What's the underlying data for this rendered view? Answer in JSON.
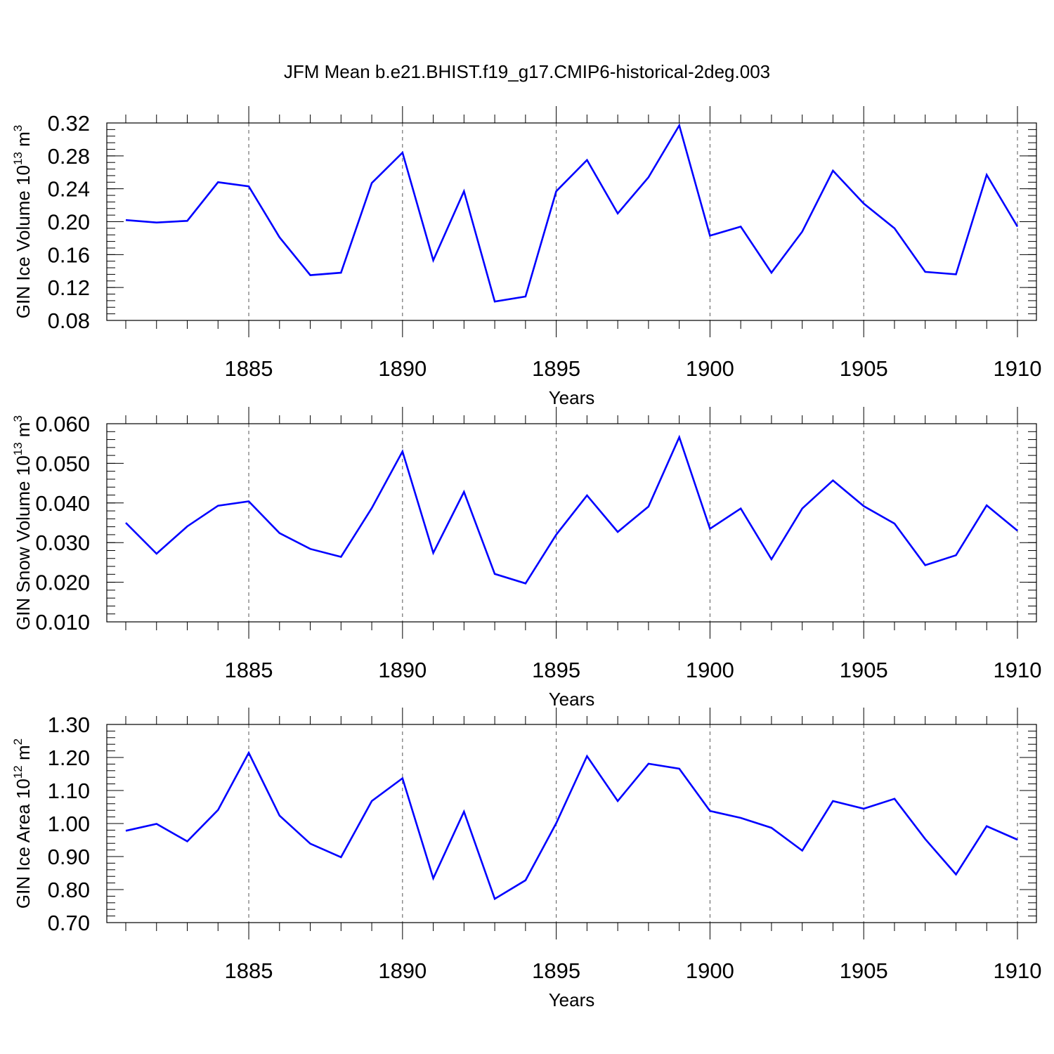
{
  "title": "JFM Mean b.e21.BHIST.f19_g17.CMIP6-historical-2deg.003",
  "line_color": "#0000ff",
  "chart_data": [
    {
      "type": "line",
      "xlabel": "Years",
      "ylabel": "GIN Ice Volume 10",
      "ylabel_sup": "13",
      "ylabel_unit": " m",
      "ylabel_unit_sup": "3",
      "xlim": [
        1881,
        1910
      ],
      "ylim": [
        0.08,
        0.32
      ],
      "x_major_ticks": [
        1885,
        1890,
        1895,
        1900,
        1905,
        1910
      ],
      "x_tick_labels": [
        "1885",
        "1890",
        "1895",
        "1900",
        "1905",
        "1910"
      ],
      "y_major_ticks": [
        0.08,
        0.12,
        0.16,
        0.2,
        0.24,
        0.28,
        0.32
      ],
      "y_tick_labels": [
        "0.08",
        "0.12",
        "0.16",
        "0.20",
        "0.24",
        "0.28",
        "0.32"
      ],
      "y_minor_step": 0.008,
      "grid": "x-major dashed",
      "x": [
        1881,
        1882,
        1883,
        1884,
        1885,
        1886,
        1887,
        1888,
        1889,
        1890,
        1891,
        1892,
        1893,
        1894,
        1895,
        1896,
        1897,
        1898,
        1899,
        1900,
        1901,
        1902,
        1903,
        1904,
        1905,
        1906,
        1907,
        1908,
        1909,
        1910
      ],
      "series": [
        {
          "values": [
            0.202,
            0.199,
            0.201,
            0.248,
            0.243,
            0.181,
            0.135,
            0.138,
            0.247,
            0.284,
            0.153,
            0.237,
            0.103,
            0.109,
            0.237,
            0.275,
            0.21,
            0.254,
            0.317,
            0.183,
            0.194,
            0.138,
            0.188,
            0.262,
            0.222,
            0.192,
            0.139,
            0.136,
            0.257,
            0.194
          ]
        }
      ]
    },
    {
      "type": "line",
      "xlabel": "Years",
      "ylabel": "GIN Snow Volume 10",
      "ylabel_sup": "13",
      "ylabel_unit": " m",
      "ylabel_unit_sup": "3",
      "xlim": [
        1881,
        1910
      ],
      "ylim": [
        0.01,
        0.06
      ],
      "x_major_ticks": [
        1885,
        1890,
        1895,
        1900,
        1905,
        1910
      ],
      "x_tick_labels": [
        "1885",
        "1890",
        "1895",
        "1900",
        "1905",
        "1910"
      ],
      "y_major_ticks": [
        0.01,
        0.02,
        0.03,
        0.04,
        0.05,
        0.06
      ],
      "y_tick_labels": [
        "0.010",
        "0.020",
        "0.030",
        "0.040",
        "0.050",
        "0.060"
      ],
      "y_minor_step": 0.002,
      "grid": "x-major dashed",
      "x": [
        1881,
        1882,
        1883,
        1884,
        1885,
        1886,
        1887,
        1888,
        1889,
        1890,
        1891,
        1892,
        1893,
        1894,
        1895,
        1896,
        1897,
        1898,
        1899,
        1900,
        1901,
        1902,
        1903,
        1904,
        1905,
        1906,
        1907,
        1908,
        1909,
        1910
      ],
      "series": [
        {
          "values": [
            0.035,
            0.0272,
            0.0341,
            0.0393,
            0.0404,
            0.0324,
            0.0284,
            0.0264,
            0.0387,
            0.053,
            0.0274,
            0.0428,
            0.0221,
            0.0197,
            0.032,
            0.0419,
            0.0327,
            0.0391,
            0.0566,
            0.0335,
            0.0386,
            0.0258,
            0.0386,
            0.0457,
            0.0392,
            0.0348,
            0.0243,
            0.0268,
            0.0394,
            0.033
          ]
        }
      ]
    },
    {
      "type": "line",
      "xlabel": "Years",
      "ylabel": "GIN Ice Area 10",
      "ylabel_sup": "12",
      "ylabel_unit": " m",
      "ylabel_unit_sup": "2",
      "xlim": [
        1881,
        1910
      ],
      "ylim": [
        0.7,
        1.3
      ],
      "x_major_ticks": [
        1885,
        1890,
        1895,
        1900,
        1905,
        1910
      ],
      "x_tick_labels": [
        "1885",
        "1890",
        "1895",
        "1900",
        "1905",
        "1910"
      ],
      "y_major_ticks": [
        0.7,
        0.8,
        0.9,
        1.0,
        1.1,
        1.2,
        1.3
      ],
      "y_tick_labels": [
        "0.70",
        "0.80",
        "0.90",
        "1.00",
        "1.10",
        "1.20",
        "1.30"
      ],
      "y_minor_step": 0.02,
      "grid": "x-major dashed",
      "x": [
        1881,
        1882,
        1883,
        1884,
        1885,
        1886,
        1887,
        1888,
        1889,
        1890,
        1891,
        1892,
        1893,
        1894,
        1895,
        1896,
        1897,
        1898,
        1899,
        1900,
        1901,
        1902,
        1903,
        1904,
        1905,
        1906,
        1907,
        1908,
        1909,
        1910
      ],
      "series": [
        {
          "values": [
            0.978,
            0.999,
            0.946,
            1.041,
            1.214,
            1.024,
            0.939,
            0.898,
            1.068,
            1.137,
            0.834,
            1.036,
            0.772,
            0.828,
            1.001,
            1.204,
            1.068,
            1.181,
            1.166,
            1.038,
            1.017,
            0.987,
            0.918,
            1.068,
            1.045,
            1.075,
            0.953,
            0.846,
            0.992,
            0.951
          ]
        }
      ]
    }
  ]
}
